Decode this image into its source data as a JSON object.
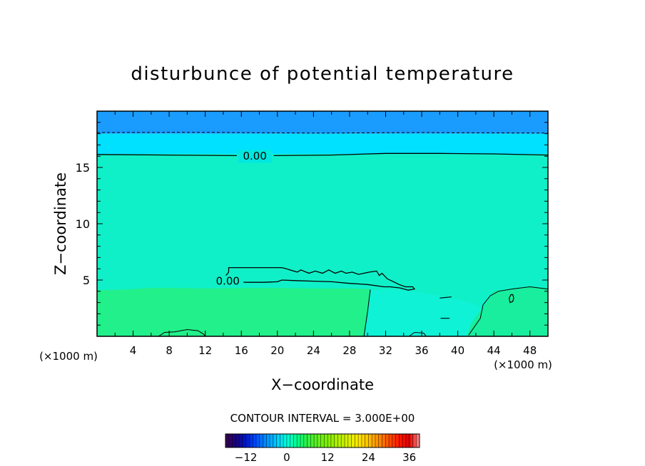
{
  "chart_data": {
    "type": "heatmap",
    "title": "disturbunce of potential temperature",
    "xlabel": "X−coordinate",
    "ylabel": "Z−coordinate",
    "x_unit_left": "(×1000 m)",
    "x_unit_right": "(×1000 m)",
    "xlim": [
      0,
      50
    ],
    "ylim": [
      0,
      20
    ],
    "x_ticks": [
      4,
      8,
      12,
      16,
      20,
      24,
      28,
      32,
      36,
      40,
      44,
      48
    ],
    "x_tick_labels": [
      "4",
      "8",
      "12",
      "16",
      "20",
      "24",
      "28",
      "32",
      "36",
      "40",
      "44",
      "48"
    ],
    "y_ticks": [
      5,
      10,
      15
    ],
    "y_tick_labels": [
      "5",
      "10",
      "15"
    ],
    "contour_labels": [
      {
        "text": "0.00",
        "x": 17.5,
        "y": 16.0
      },
      {
        "text": "0.00",
        "x": 14.5,
        "y": 4.9
      }
    ],
    "contour_interval_text": "CONTOUR INTERVAL = 3.000E+00",
    "colorbar": {
      "min": -18,
      "max": 39,
      "step": 3,
      "tick_values": [
        -12,
        0,
        12,
        24,
        36
      ],
      "tick_labels": [
        "−12",
        "0",
        "12",
        "24",
        "36"
      ]
    },
    "regions": [
      {
        "name": "upper layer",
        "y_range": [
          18,
          20
        ],
        "level": -4.5,
        "color": "#1a9cff"
      },
      {
        "name": "transition layer",
        "y_range": [
          16.2,
          18
        ],
        "level": -2,
        "color": "#00e0ff"
      },
      {
        "name": "middle layer",
        "y_range": [
          4.2,
          16.2
        ],
        "level": 1,
        "color": "#10f0c8"
      },
      {
        "name": "lower layer",
        "y_range": [
          0,
          4.2
        ],
        "level": 4,
        "color": "#22f08a"
      }
    ]
  }
}
